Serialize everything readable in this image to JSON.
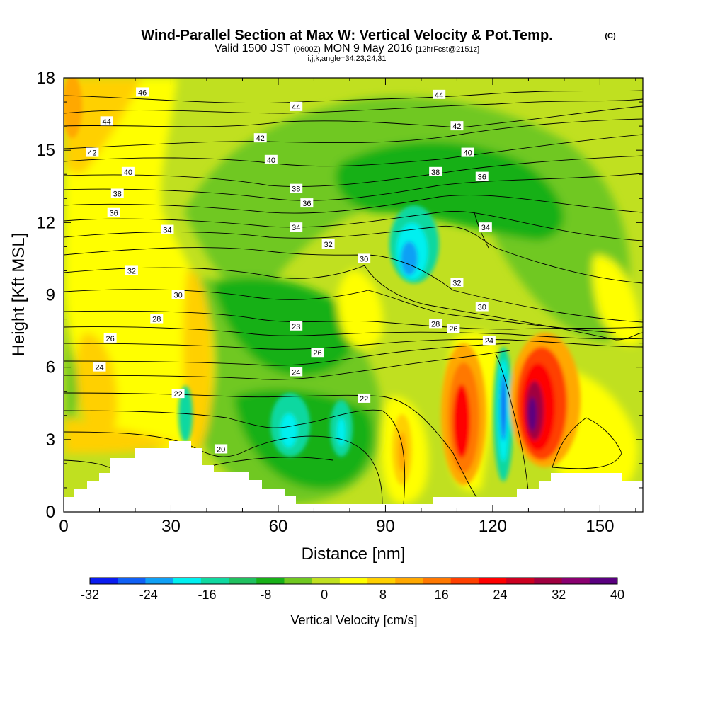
{
  "title": {
    "main": "Wind-Parallel Section at Max W: Vertical Velocity & Pot.Temp.",
    "main_tag": "(C)",
    "valid_prefix": "Valid 1500 JST",
    "valid_utc": "(0600Z)",
    "valid_date": "MON 9 May 2016",
    "forecast": "[12hrFcst@2151z]",
    "indices": "i,j,k,angle=34,23,24,31"
  },
  "chart_data": {
    "type": "heatmap",
    "xlabel": "Distance [nm]",
    "ylabel": "Height [Kft MSL]",
    "xlim": [
      0,
      162
    ],
    "ylim": [
      0,
      18
    ],
    "x_ticks": [
      0,
      30,
      60,
      90,
      120,
      150
    ],
    "y_ticks": [
      0,
      3,
      6,
      9,
      12,
      15,
      18
    ],
    "colorbar": {
      "label": "Vertical Velocity [cm/s]",
      "ticks": [
        -32,
        -24,
        -16,
        -8,
        0,
        8,
        16,
        24,
        32,
        40
      ],
      "levels": [
        -32,
        -28,
        -24,
        -20,
        -16,
        -12,
        -8,
        -4,
        0,
        4,
        8,
        12,
        16,
        20,
        24,
        28,
        32,
        36,
        40
      ],
      "colors": [
        "#0a1cf0",
        "#1060f5",
        "#10a0f5",
        "#00f0f0",
        "#10d8a0",
        "#20c060",
        "#18b018",
        "#70c820",
        "#c0e020",
        "#ffff00",
        "#ffd000",
        "#ffa800",
        "#ff7800",
        "#ff4000",
        "#ff0000",
        "#cc0020",
        "#a00040",
        "#8a0070",
        "#5a0080"
      ]
    },
    "vertical_velocity_features": [
      {
        "type": "updraft",
        "x": 112,
        "y": 3.8,
        "peak": 28
      },
      {
        "type": "downdraft",
        "x": 123,
        "y": 4.5,
        "peak": -28
      },
      {
        "type": "updraft",
        "x": 130,
        "y": 4.2,
        "peak": 40
      },
      {
        "type": "downdraft",
        "x": 97,
        "y": 10.8,
        "peak": -24
      },
      {
        "type": "downdraft",
        "x": 64,
        "y": 3.5,
        "peak": -18
      },
      {
        "type": "downdraft",
        "x": 80,
        "y": 3.5,
        "peak": -14
      },
      {
        "type": "updraft",
        "x": 94,
        "y": 3.0,
        "peak": 14
      },
      {
        "type": "updraft",
        "x": 4,
        "y": 16.5,
        "peak": 14
      }
    ],
    "potential_temperature_contours": [
      {
        "value": "46",
        "x": 22,
        "y": 17.4
      },
      {
        "value": "44",
        "x": 12,
        "y": 16.2
      },
      {
        "value": "44",
        "x": 65,
        "y": 16.8
      },
      {
        "value": "44",
        "x": 105,
        "y": 17.3
      },
      {
        "value": "42",
        "x": 8,
        "y": 14.9
      },
      {
        "value": "42",
        "x": 55,
        "y": 15.5
      },
      {
        "value": "42",
        "x": 110,
        "y": 16.0
      },
      {
        "value": "40",
        "x": 18,
        "y": 14.1
      },
      {
        "value": "40",
        "x": 58,
        "y": 14.6
      },
      {
        "value": "40",
        "x": 113,
        "y": 14.9
      },
      {
        "value": "38",
        "x": 15,
        "y": 13.2
      },
      {
        "value": "38",
        "x": 65,
        "y": 13.4
      },
      {
        "value": "38",
        "x": 104,
        "y": 14.1
      },
      {
        "value": "36",
        "x": 14,
        "y": 12.4
      },
      {
        "value": "36",
        "x": 68,
        "y": 12.8
      },
      {
        "value": "36",
        "x": 117,
        "y": 13.9
      },
      {
        "value": "34",
        "x": 29,
        "y": 11.7
      },
      {
        "value": "34",
        "x": 65,
        "y": 11.8
      },
      {
        "value": "34",
        "x": 118,
        "y": 11.8
      },
      {
        "value": "32",
        "x": 19,
        "y": 10.0
      },
      {
        "value": "32",
        "x": 74,
        "y": 11.1
      },
      {
        "value": "32",
        "x": 110,
        "y": 9.5
      },
      {
        "value": "30",
        "x": 32,
        "y": 9.0
      },
      {
        "value": "30",
        "x": 84,
        "y": 10.5
      },
      {
        "value": "30",
        "x": 117,
        "y": 8.5
      },
      {
        "value": "28",
        "x": 26,
        "y": 8.0
      },
      {
        "value": "28",
        "x": 104,
        "y": 7.8
      },
      {
        "value": "26",
        "x": 13,
        "y": 7.2
      },
      {
        "value": "26",
        "x": 71,
        "y": 6.6
      },
      {
        "value": "26",
        "x": 109,
        "y": 7.6
      },
      {
        "value": "24",
        "x": 10,
        "y": 6.0
      },
      {
        "value": "24",
        "x": 65,
        "y": 5.8
      },
      {
        "value": "24",
        "x": 119,
        "y": 7.1
      },
      {
        "value": "23",
        "x": 65,
        "y": 7.7
      },
      {
        "value": "22",
        "x": 32,
        "y": 4.9
      },
      {
        "value": "22",
        "x": 84,
        "y": 4.7
      },
      {
        "value": "20",
        "x": 44,
        "y": 2.6
      }
    ]
  }
}
